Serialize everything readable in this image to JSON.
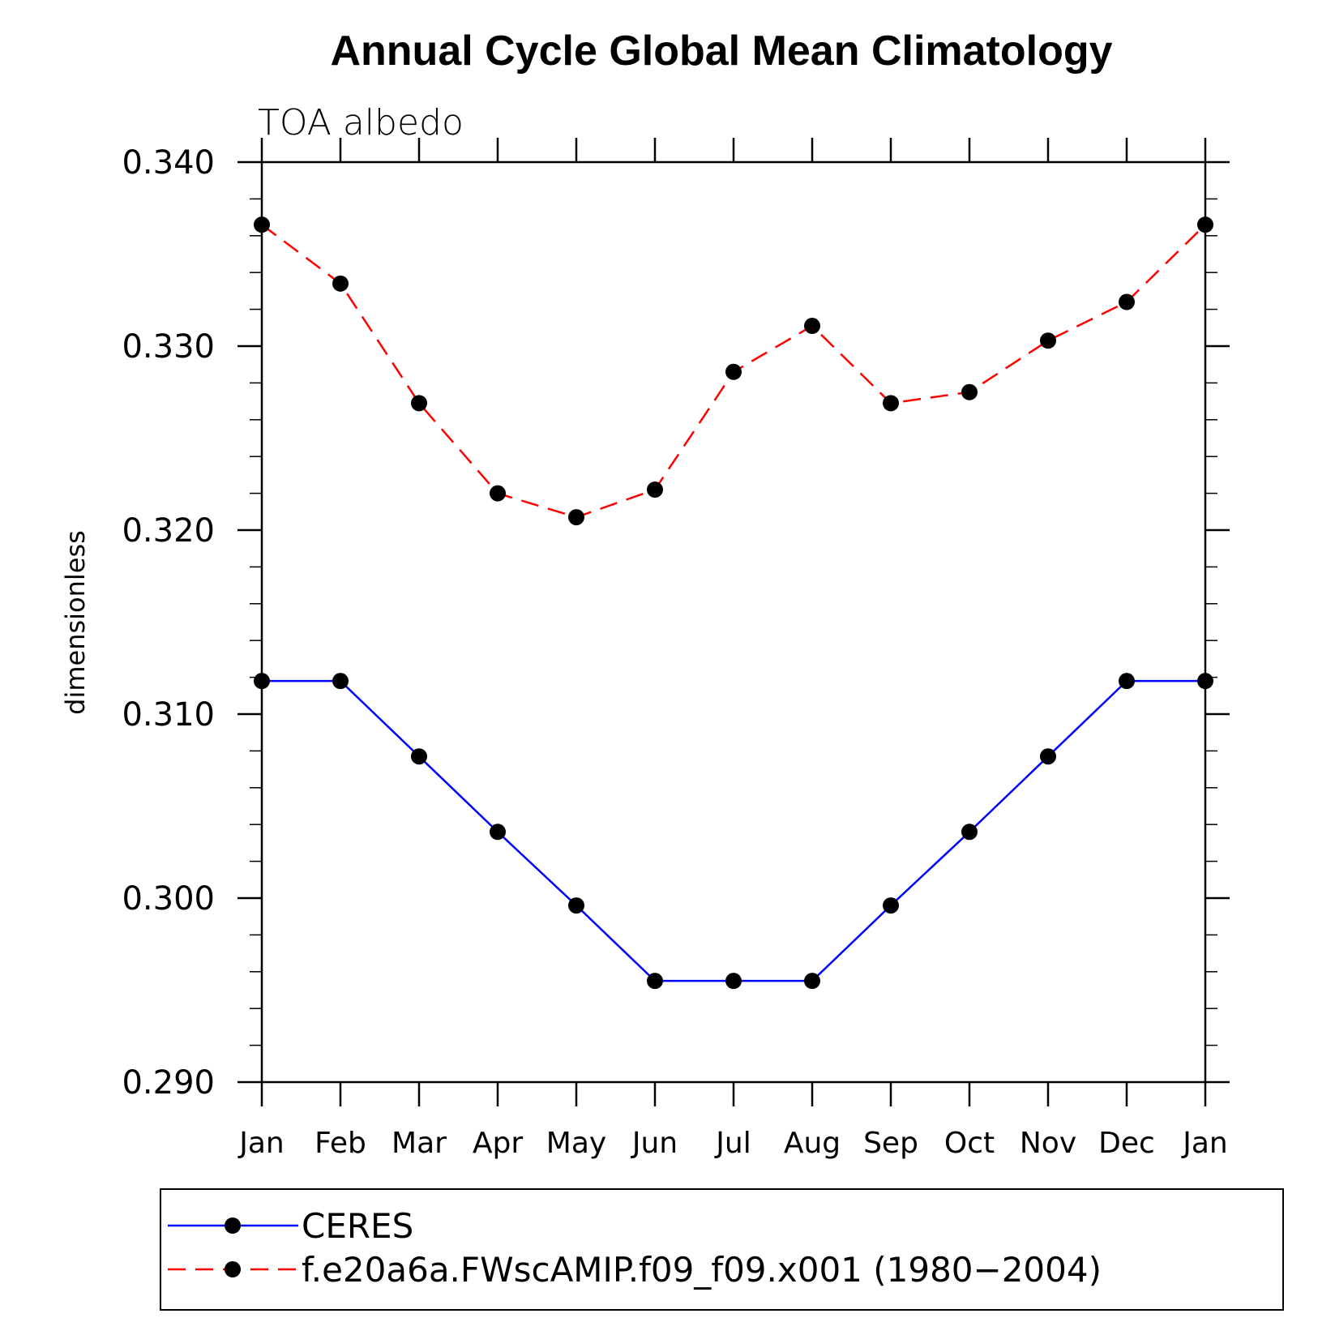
{
  "chart_data": {
    "type": "line",
    "title": "Annual Cycle Global Mean Climatology",
    "subtitle": "TOA albedo",
    "ylabel": "dimensionless",
    "xlabel": "",
    "x": [
      "Jan",
      "Feb",
      "Mar",
      "Apr",
      "May",
      "Jun",
      "Jul",
      "Aug",
      "Sep",
      "Oct",
      "Nov",
      "Dec",
      "Jan"
    ],
    "ylim": [
      0.29,
      0.34
    ],
    "yticks": [
      "0.290",
      "0.300",
      "0.310",
      "0.320",
      "0.330",
      "0.340"
    ],
    "ytick_values": [
      0.29,
      0.3,
      0.31,
      0.32,
      0.33,
      0.34
    ],
    "grid": false,
    "legend_position": "bottom",
    "series": [
      {
        "name": "CERES",
        "color": "#0000ff",
        "line_style": "solid",
        "marker": "filled-circle",
        "values": [
          0.3118,
          0.3118,
          0.3077,
          0.3036,
          0.2996,
          0.2955,
          0.2955,
          0.2955,
          0.2996,
          0.3036,
          0.3077,
          0.3118,
          0.3118
        ]
      },
      {
        "name": "f.e20a6a.FWscAMIP.f09_f09.x001 (1980−2004)",
        "color": "#ff0000",
        "line_style": "dashed",
        "marker": "filled-circle",
        "values": [
          0.3366,
          0.3334,
          0.3269,
          0.322,
          0.3207,
          0.3222,
          0.3286,
          0.3311,
          0.3269,
          0.3275,
          0.3303,
          0.3324,
          0.3366
        ]
      }
    ]
  }
}
